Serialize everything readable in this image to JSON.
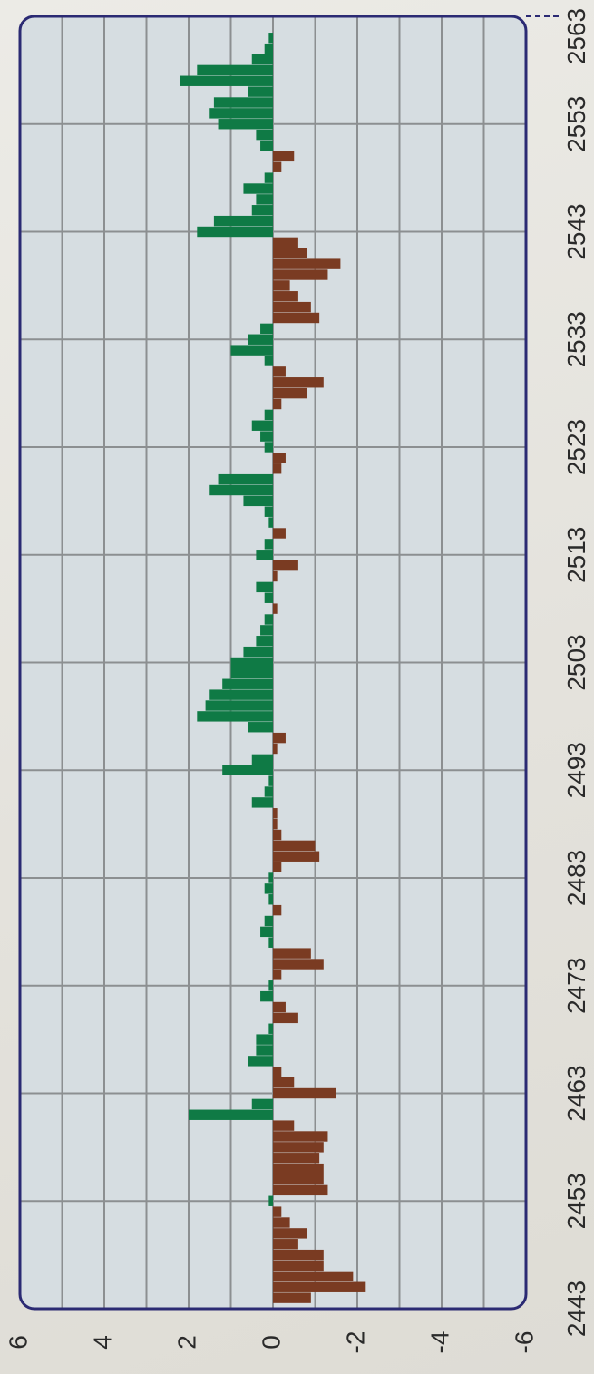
{
  "chart_data": {
    "type": "bar",
    "orientation": "rotated-90",
    "x_ticks": [
      2443,
      2453,
      2463,
      2473,
      2483,
      2493,
      2503,
      2513,
      2523,
      2533,
      2543,
      2553,
      2563
    ],
    "y_ticks": [
      6,
      4,
      2,
      0,
      -2,
      -4,
      -6
    ],
    "xlim": [
      2443,
      2563
    ],
    "ylim": [
      -6,
      6
    ],
    "grid": true,
    "colors": {
      "positive": "#0f7a45",
      "negative": "#7a3b22",
      "plot_background": "#d6dde1",
      "frame": "#2b2a73",
      "grid": "#8c8f91"
    },
    "x": [
      2444,
      2445,
      2446,
      2447,
      2448,
      2449,
      2450,
      2451,
      2452,
      2453,
      2454,
      2455,
      2456,
      2457,
      2458,
      2459,
      2460,
      2461,
      2462,
      2463,
      2464,
      2465,
      2466,
      2467,
      2468,
      2469,
      2470,
      2471,
      2472,
      2473,
      2474,
      2475,
      2476,
      2477,
      2478,
      2479,
      2480,
      2481,
      2482,
      2483,
      2484,
      2485,
      2486,
      2487,
      2488,
      2489,
      2490,
      2491,
      2492,
      2493,
      2494,
      2495,
      2496,
      2497,
      2498,
      2499,
      2500,
      2501,
      2502,
      2503,
      2504,
      2505,
      2506,
      2507,
      2508,
      2509,
      2510,
      2511,
      2512,
      2513,
      2514,
      2515,
      2516,
      2517,
      2518,
      2519,
      2520,
      2521,
      2522,
      2523,
      2524,
      2525,
      2526,
      2527,
      2528,
      2529,
      2530,
      2531,
      2532,
      2533,
      2534,
      2535,
      2536,
      2537,
      2538,
      2539,
      2540,
      2541,
      2542,
      2543,
      2544,
      2545,
      2546,
      2547,
      2548,
      2549,
      2550,
      2551,
      2552,
      2553,
      2554,
      2555,
      2556,
      2557,
      2558,
      2559,
      2560,
      2561,
      2562
    ],
    "values": [
      -0.9,
      -2.2,
      -1.9,
      -1.2,
      -1.2,
      -0.6,
      -0.8,
      -0.4,
      -0.2,
      0.1,
      -1.3,
      -1.2,
      -1.2,
      -1.1,
      -1.2,
      -1.3,
      -0.5,
      2.0,
      0.5,
      -1.5,
      -0.5,
      -0.2,
      0.6,
      0.4,
      0.4,
      0.1,
      -0.6,
      -0.3,
      0.3,
      0.1,
      -0.2,
      -1.2,
      -0.9,
      0.1,
      0.3,
      0.2,
      -0.2,
      0.1,
      0.2,
      0.1,
      -0.2,
      -1.1,
      -1.0,
      -0.2,
      -0.1,
      -0.1,
      0.5,
      0.2,
      0.1,
      1.2,
      0.5,
      -0.1,
      -0.3,
      0.6,
      1.8,
      1.6,
      1.5,
      1.2,
      1.0,
      1.0,
      0.7,
      0.4,
      0.3,
      0.2,
      -0.1,
      0.2,
      0.4,
      -0.1,
      -0.6,
      0.4,
      0.2,
      -0.3,
      0.1,
      0.2,
      0.7,
      1.5,
      1.3,
      -0.2,
      -0.3,
      0.2,
      0.3,
      0.5,
      0.2,
      -0.2,
      -0.8,
      -1.2,
      -0.3,
      0.2,
      1.0,
      0.6,
      0.3,
      -1.1,
      -0.9,
      -0.6,
      -0.4,
      -1.3,
      -1.6,
      -0.8,
      -0.6,
      1.8,
      1.4,
      0.5,
      0.4,
      0.7,
      0.2,
      -0.2,
      -0.5,
      0.3,
      0.4,
      1.3,
      1.5,
      1.4,
      0.6,
      2.2,
      1.8,
      0.5,
      0.2,
      0.1,
      0.0
    ]
  }
}
